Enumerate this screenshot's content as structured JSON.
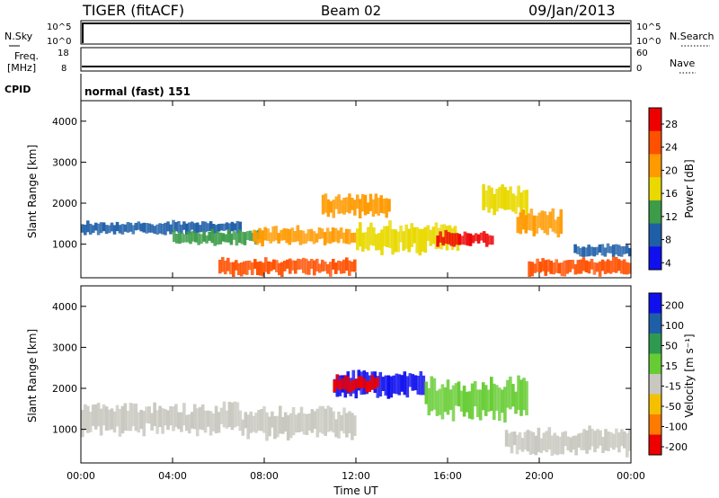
{
  "header": {
    "station": "TIGER (fitACF)",
    "beam": "Beam 02",
    "date": "09/Jan/2013"
  },
  "top_panels": {
    "nsky": {
      "label": "N.Sky",
      "ticks": [
        "10^5",
        "10^0"
      ]
    },
    "nsearch": {
      "label": "N.Search",
      "ticks": [
        "10^5",
        "10^0"
      ]
    },
    "freq": {
      "label_line1": "Freq.",
      "label_line2": "[MHz]",
      "ticks": [
        "18",
        "8"
      ]
    },
    "nave": {
      "label": "Nave",
      "ticks": [
        "60",
        "0"
      ]
    },
    "cpid": {
      "label": "CPID",
      "value": "normal (fast) 151"
    }
  },
  "chart_data": [
    {
      "type": "heatmap",
      "panel": "power",
      "ylabel": "Slant Range [km]",
      "xlabel": "",
      "ylim": [
        180,
        4500
      ],
      "xlim": [
        0,
        24
      ],
      "yticks": [
        1000,
        2000,
        3000,
        4000
      ],
      "xticks": [
        "00:00",
        "04:00",
        "08:00",
        "12:00",
        "16:00",
        "20:00",
        "00:00"
      ],
      "colorbar": {
        "label": "Power [dB]",
        "ticks": [
          "28",
          "24",
          "20",
          "16",
          "12",
          "8",
          "4"
        ],
        "colors": [
          "#ee0000",
          "#ff5000",
          "#ff9a00",
          "#e9d900",
          "#3c9c48",
          "#1f5fa8",
          "#1010ee"
        ]
      },
      "regions": [
        {
          "t0": 0.0,
          "t1": 7.0,
          "r0": 1250,
          "r1": 1550,
          "level": 8
        },
        {
          "t0": 4.0,
          "t1": 7.8,
          "r0": 1000,
          "r1": 1350,
          "level": 14
        },
        {
          "t0": 6.0,
          "t1": 12.0,
          "r0": 250,
          "r1": 650,
          "level": 24
        },
        {
          "t0": 7.5,
          "t1": 12.0,
          "r0": 1000,
          "r1": 1400,
          "level": 20
        },
        {
          "t0": 10.5,
          "t1": 13.5,
          "r0": 1700,
          "r1": 2200,
          "level": 20
        },
        {
          "t0": 12.0,
          "t1": 16.5,
          "r0": 800,
          "r1": 1500,
          "level": 18
        },
        {
          "t0": 15.5,
          "t1": 18.0,
          "r0": 950,
          "r1": 1300,
          "level": 28
        },
        {
          "t0": 17.5,
          "t1": 19.5,
          "r0": 1700,
          "r1": 2400,
          "level": 16
        },
        {
          "t0": 19.0,
          "t1": 21.0,
          "r0": 1200,
          "r1": 1800,
          "level": 20
        },
        {
          "t0": 19.5,
          "t1": 24.0,
          "r0": 250,
          "r1": 650,
          "level": 24
        },
        {
          "t0": 21.5,
          "t1": 24.0,
          "r0": 700,
          "r1": 1000,
          "level": 8
        }
      ]
    },
    {
      "type": "heatmap",
      "panel": "velocity",
      "ylabel": "Slant Range [km]",
      "xlabel": "Time UT",
      "ylim": [
        180,
        4500
      ],
      "xlim": [
        0,
        24
      ],
      "yticks": [
        1000,
        2000,
        3000,
        4000
      ],
      "xticks": [
        "00:00",
        "04:00",
        "08:00",
        "12:00",
        "16:00",
        "20:00",
        "00:00"
      ],
      "colorbar": {
        "label": "Velocity [m s⁻¹]",
        "ticks": [
          "200",
          "100",
          "50",
          "15",
          "-15",
          "-50",
          "-100",
          "-200"
        ],
        "colors": [
          "#1010ee",
          "#1f5fa8",
          "#2e9a50",
          "#66cc33",
          "#c8c8c0",
          "#f5c000",
          "#ff7a00",
          "#ee0000"
        ]
      },
      "regions": [
        {
          "t0": 0.0,
          "t1": 7.0,
          "r0": 900,
          "r1": 1600,
          "v": 0
        },
        {
          "t0": 7.0,
          "t1": 12.0,
          "r0": 800,
          "r1": 1500,
          "v": 0
        },
        {
          "t0": 11.0,
          "t1": 15.0,
          "r0": 1800,
          "r1": 2400,
          "v": 150
        },
        {
          "t0": 11.0,
          "t1": 13.0,
          "r0": 1900,
          "r1": 2300,
          "v": -150
        },
        {
          "t0": 15.0,
          "t1": 19.5,
          "r0": 1300,
          "r1": 2200,
          "v": 30
        },
        {
          "t0": 18.5,
          "t1": 24.0,
          "r0": 400,
          "r1": 1000,
          "v": 0
        }
      ]
    }
  ]
}
